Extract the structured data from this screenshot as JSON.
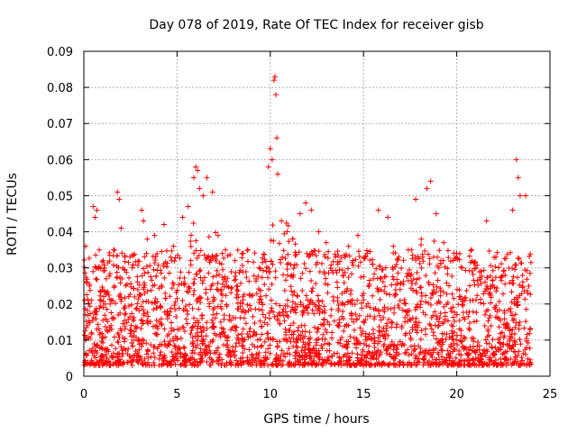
{
  "chart_data": {
    "type": "scatter",
    "title": "Day 078 of 2019, Rate Of TEC Index for receiver gisb",
    "xlabel": "GPS time / hours",
    "ylabel": "ROTI / TECUs",
    "xlim": [
      0,
      25
    ],
    "ylim": [
      0,
      0.09
    ],
    "xticks": [
      0,
      5,
      10,
      15,
      20,
      25
    ],
    "xtick_labels": [
      "0",
      "5",
      "10",
      "15",
      "20",
      "25"
    ],
    "yticks": [
      0,
      0.01,
      0.02,
      0.03,
      0.04,
      0.05,
      0.06,
      0.07,
      0.08,
      0.09
    ],
    "ytick_labels": [
      "0",
      "0.01",
      "0.02",
      "0.03",
      "0.04",
      "0.05",
      "0.06",
      "0.07",
      "0.08",
      "0.09"
    ],
    "grid": true,
    "marker": "+",
    "series_color": "#ff0000",
    "series": [
      {
        "name": "ROTI",
        "points": [
          [
            0.1,
            0.036
          ],
          [
            0.3,
            0.025
          ],
          [
            0.5,
            0.047
          ],
          [
            0.6,
            0.044
          ],
          [
            0.7,
            0.046
          ],
          [
            0.8,
            0.03
          ],
          [
            1.2,
            0.027
          ],
          [
            1.6,
            0.035
          ],
          [
            1.8,
            0.051
          ],
          [
            1.9,
            0.049
          ],
          [
            2.0,
            0.041
          ],
          [
            2.2,
            0.033
          ],
          [
            2.6,
            0.03
          ],
          [
            3.1,
            0.046
          ],
          [
            3.2,
            0.043
          ],
          [
            3.4,
            0.038
          ],
          [
            3.8,
            0.039
          ],
          [
            4.3,
            0.042
          ],
          [
            4.8,
            0.036
          ],
          [
            5.3,
            0.044
          ],
          [
            5.6,
            0.047
          ],
          [
            5.9,
            0.055
          ],
          [
            6.0,
            0.058
          ],
          [
            6.1,
            0.057
          ],
          [
            6.2,
            0.052
          ],
          [
            6.4,
            0.05
          ],
          [
            6.6,
            0.055
          ],
          [
            6.9,
            0.051
          ],
          [
            7.2,
            0.039
          ],
          [
            7.6,
            0.035
          ],
          [
            8.1,
            0.032
          ],
          [
            8.8,
            0.035
          ],
          [
            9.4,
            0.03
          ],
          [
            9.9,
            0.058
          ],
          [
            10.0,
            0.063
          ],
          [
            10.1,
            0.06
          ],
          [
            10.2,
            0.082
          ],
          [
            10.25,
            0.083
          ],
          [
            10.3,
            0.078
          ],
          [
            10.35,
            0.066
          ],
          [
            10.4,
            0.056
          ],
          [
            10.6,
            0.043
          ],
          [
            10.9,
            0.04
          ],
          [
            11.2,
            0.038
          ],
          [
            11.6,
            0.045
          ],
          [
            11.9,
            0.048
          ],
          [
            12.2,
            0.046
          ],
          [
            12.6,
            0.04
          ],
          [
            13.0,
            0.037
          ],
          [
            13.5,
            0.033
          ],
          [
            14.2,
            0.036
          ],
          [
            14.7,
            0.039
          ],
          [
            15.2,
            0.034
          ],
          [
            15.8,
            0.046
          ],
          [
            16.3,
            0.044
          ],
          [
            16.6,
            0.036
          ],
          [
            16.9,
            0.033
          ],
          [
            17.4,
            0.035
          ],
          [
            17.8,
            0.049
          ],
          [
            18.1,
            0.038
          ],
          [
            18.4,
            0.052
          ],
          [
            18.6,
            0.054
          ],
          [
            18.9,
            0.045
          ],
          [
            19.3,
            0.037
          ],
          [
            19.8,
            0.032
          ],
          [
            20.3,
            0.03
          ],
          [
            20.8,
            0.035
          ],
          [
            21.3,
            0.029
          ],
          [
            21.6,
            0.043
          ],
          [
            22.1,
            0.033
          ],
          [
            22.6,
            0.028
          ],
          [
            23.0,
            0.046
          ],
          [
            23.2,
            0.06
          ],
          [
            23.3,
            0.055
          ],
          [
            23.4,
            0.05
          ],
          [
            23.7,
            0.05
          ],
          [
            23.8,
            0.023
          ]
        ],
        "band": {
          "description": "dense cluster of points between roughly 0.003 and 0.035 TECU across the full 0-24 h range",
          "x_range": [
            0,
            24
          ],
          "y_min": 0.003,
          "y_max": 0.035
        }
      }
    ]
  }
}
